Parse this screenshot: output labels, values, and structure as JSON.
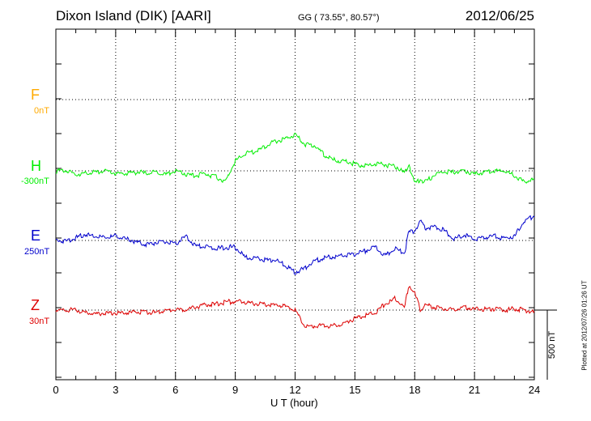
{
  "header": {
    "station": "Dixon Island (DIK)  [AARI]",
    "coords": "GG ( 73.55°,  80.57°)",
    "date": "2012/06/25"
  },
  "footer": {
    "plotted": "Plotted at 2012/07/26 01:26 UT",
    "scale": "500 nT"
  },
  "colors": {
    "F": "#ffaa00",
    "H": "#00ee00",
    "E": "#0000cc",
    "Z": "#dd0000"
  },
  "chart_data": {
    "type": "line",
    "xlabel": "U T (hour)",
    "xlim": [
      0,
      24
    ],
    "xticks": [
      "0",
      "3",
      "6",
      "9",
      "12",
      "15",
      "18",
      "21",
      "24"
    ],
    "grid": true,
    "series": [
      {
        "name": "F",
        "baseline_label": "0nT",
        "color": "#ffaa00",
        "x": [],
        "y": []
      },
      {
        "name": "H",
        "baseline_label": "-300nT",
        "color": "#00ee00",
        "x": [
          0,
          0.5,
          1,
          1.5,
          2,
          2.5,
          3,
          3.5,
          4,
          4.5,
          5,
          5.5,
          6,
          6.5,
          7,
          7.5,
          8,
          8.5,
          9,
          9.5,
          10,
          10.5,
          11,
          11.5,
          12,
          12.5,
          13,
          13.5,
          14,
          14.5,
          15,
          15.5,
          16,
          16.5,
          17,
          17.5,
          17.7,
          18,
          18.3,
          18.5,
          19,
          19.5,
          20,
          20.5,
          21,
          21.5,
          22,
          22.5,
          23,
          23.5,
          24
        ],
        "y": [
          0,
          0,
          -25,
          -20,
          -10,
          0,
          -20,
          -20,
          -10,
          -15,
          -10,
          -25,
          0,
          -25,
          -35,
          -20,
          -40,
          -80,
          70,
          125,
          140,
          175,
          210,
          230,
          255,
          190,
          180,
          110,
          75,
          65,
          50,
          35,
          50,
          45,
          35,
          -15,
          50,
          -90,
          -60,
          -80,
          -30,
          -5,
          -10,
          0,
          -20,
          -10,
          0,
          0,
          -35,
          -80,
          -60
        ]
      },
      {
        "name": "E",
        "baseline_label": "250nT",
        "color": "#0000cc",
        "x": [
          0,
          0.5,
          1,
          1.5,
          2,
          2.5,
          3,
          3.5,
          4,
          4.5,
          5,
          5.5,
          6,
          6.5,
          7,
          7.5,
          8,
          8.5,
          9,
          9.5,
          10,
          10.5,
          11,
          11.5,
          12,
          12.5,
          13,
          13.5,
          14,
          14.5,
          15,
          15.5,
          16,
          16.5,
          17,
          17.5,
          17.7,
          18,
          18.3,
          18.5,
          19,
          19.5,
          20,
          20.5,
          21,
          21.5,
          22,
          22.5,
          23,
          23.5,
          24
        ],
        "y": [
          0,
          -5,
          20,
          45,
          30,
          20,
          30,
          10,
          -10,
          -30,
          -15,
          -10,
          -25,
          30,
          -40,
          -45,
          -60,
          -50,
          -50,
          -120,
          -125,
          -140,
          -140,
          -180,
          -230,
          -200,
          -145,
          -125,
          -120,
          -105,
          -100,
          -75,
          -45,
          -110,
          -60,
          -90,
          60,
          70,
          140,
          90,
          100,
          70,
          10,
          40,
          10,
          20,
          30,
          15,
          30,
          140,
          180
        ]
      },
      {
        "name": "Z",
        "baseline_label": "30nT",
        "color": "#dd0000",
        "x": [
          0,
          0.5,
          1,
          1.5,
          2,
          2.5,
          3,
          3.5,
          4,
          4.5,
          5,
          5.5,
          6,
          6.5,
          7,
          7.5,
          8,
          8.5,
          9,
          9.5,
          10,
          10.5,
          11,
          11.5,
          12,
          12.5,
          13,
          13.5,
          14,
          14.5,
          15,
          15.5,
          16,
          16.5,
          17,
          17.5,
          17.7,
          18,
          18.3,
          18.5,
          19,
          19.5,
          20,
          20.5,
          21,
          21.5,
          22,
          22.5,
          23,
          23.5,
          24
        ],
        "y": [
          0,
          0,
          0,
          -20,
          -25,
          -25,
          -20,
          -20,
          -10,
          -15,
          -15,
          -5,
          5,
          0,
          20,
          40,
          40,
          60,
          60,
          55,
          45,
          40,
          35,
          30,
          0,
          -120,
          -115,
          -110,
          -115,
          -90,
          -60,
          -40,
          -20,
          40,
          80,
          20,
          180,
          120,
          0,
          40,
          20,
          10,
          5,
          20,
          10,
          5,
          10,
          0,
          10,
          0,
          -20
        ]
      }
    ]
  }
}
